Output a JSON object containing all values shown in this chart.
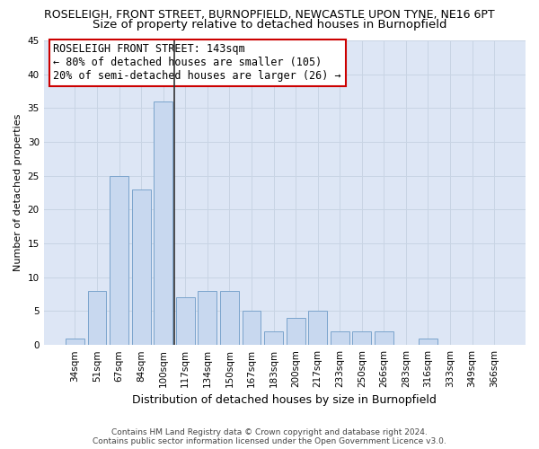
{
  "title": "ROSELEIGH, FRONT STREET, BURNOPFIELD, NEWCASTLE UPON TYNE, NE16 6PT",
  "subtitle": "Size of property relative to detached houses in Burnopfield",
  "xlabel": "Distribution of detached houses by size in Burnopfield",
  "ylabel": "Number of detached properties",
  "categories": [
    "34sqm",
    "51sqm",
    "67sqm",
    "84sqm",
    "100sqm",
    "117sqm",
    "134sqm",
    "150sqm",
    "167sqm",
    "183sqm",
    "200sqm",
    "217sqm",
    "233sqm",
    "250sqm",
    "266sqm",
    "283sqm",
    "316sqm",
    "333sqm",
    "349sqm",
    "366sqm"
  ],
  "values": [
    1,
    8,
    25,
    23,
    36,
    7,
    8,
    8,
    5,
    2,
    4,
    5,
    2,
    2,
    2,
    0,
    1,
    0,
    0,
    0
  ],
  "bar_color": "#c8d8ef",
  "bar_edge_color": "#7ba4cc",
  "vline_x": 4.5,
  "vline_color": "#333333",
  "annotation_title": "ROSELEIGH FRONT STREET: 143sqm",
  "annotation_line1": "← 80% of detached houses are smaller (105)",
  "annotation_line2": "20% of semi-detached houses are larger (26) →",
  "annotation_box_facecolor": "#ffffff",
  "annotation_box_edgecolor": "#cc0000",
  "ylim": [
    0,
    45
  ],
  "yticks": [
    0,
    5,
    10,
    15,
    20,
    25,
    30,
    35,
    40,
    45
  ],
  "grid_color": "#c8d4e4",
  "plot_bg_color": "#dde6f5",
  "footer_line1": "Contains HM Land Registry data © Crown copyright and database right 2024.",
  "footer_line2": "Contains public sector information licensed under the Open Government Licence v3.0.",
  "title_fontsize": 9,
  "subtitle_fontsize": 9.5,
  "annotation_fontsize": 8.5,
  "ylabel_fontsize": 8,
  "xlabel_fontsize": 9,
  "tick_fontsize": 7.5,
  "footer_fontsize": 6.5
}
